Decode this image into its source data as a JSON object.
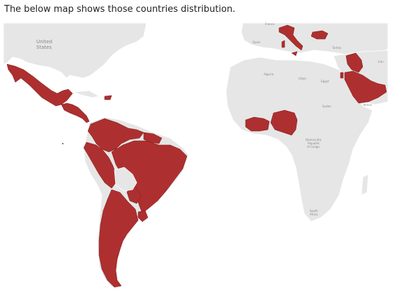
{
  "caption": "The below map shows those countries distribution.",
  "highlight_color": "#ae2f2f",
  "land_color": "#e6e6e6",
  "labels": {
    "united_states": [
      "United",
      "States"
    ],
    "france": "France",
    "spain": "Spain",
    "turkey": "Turkey",
    "iran": "Iran",
    "algeria": "Algeria",
    "libya": "Libya",
    "egypt": "Egypt",
    "sudan": "Sudan",
    "yemen": "Yemen",
    "drc": [
      "Democratic",
      "Republic",
      "of Congo"
    ],
    "south_africa": [
      "South",
      "Africa"
    ]
  },
  "highlighted_countries": [
    "Mexico",
    "Guatemala",
    "Honduras",
    "El Salvador",
    "Nicaragua",
    "Panama",
    "Dominican Republic",
    "Colombia",
    "Venezuela",
    "Guyana",
    "Suriname",
    "Ecuador",
    "Peru",
    "Brazil",
    "Paraguay",
    "Uruguay",
    "Argentina",
    "Chile",
    "Italy",
    "Bulgaria",
    "Ivory Coast",
    "Ghana",
    "Nigeria",
    "Cameroon",
    "Saudi Arabia",
    "United Arab Emirates",
    "Oman",
    "Iraq",
    "Kuwait",
    "Qatar"
  ]
}
